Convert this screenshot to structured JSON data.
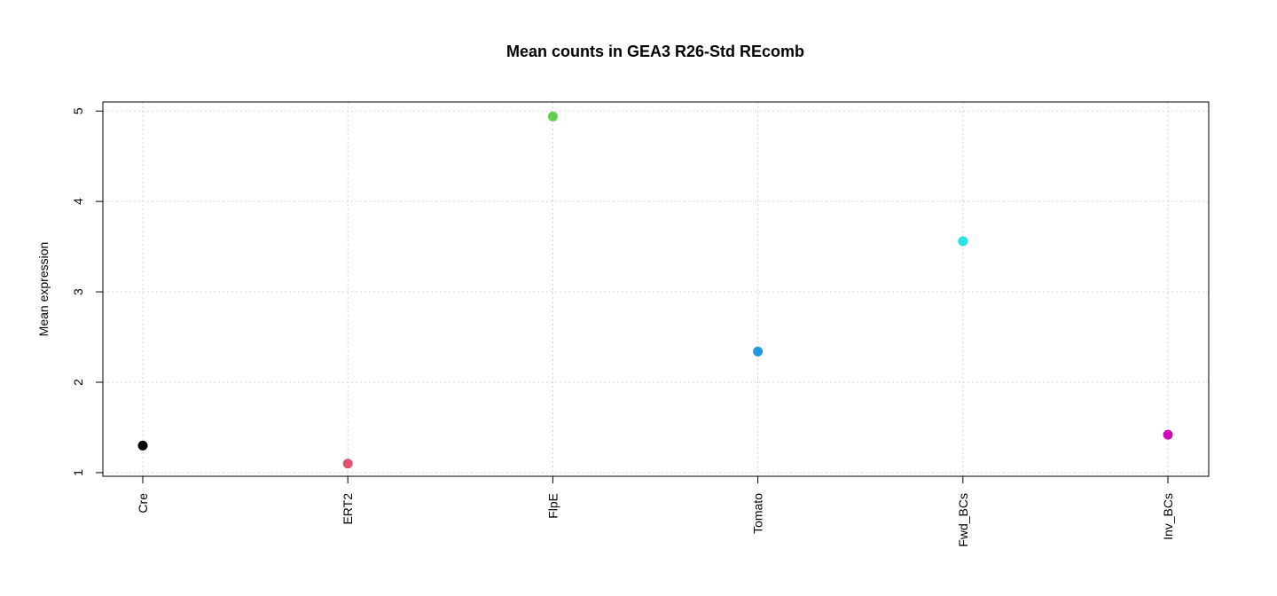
{
  "chart_data": {
    "type": "scatter",
    "title": "Mean counts in GEA3 R26-Std REcomb",
    "xlabel": "",
    "ylabel": "Mean expression",
    "categories": [
      "Cre",
      "ERT2",
      "FlpE",
      "Tomato",
      "Fwd_BCs",
      "Inv_BCs"
    ],
    "values": [
      1.3,
      1.1,
      4.94,
      2.34,
      3.56,
      1.42
    ],
    "point_colors": [
      "#000000",
      "#DF536B",
      "#61D04F",
      "#2297E6",
      "#28E2E5",
      "#CD0BBC"
    ],
    "ylim": [
      0.96,
      5.1
    ],
    "yticks": [
      1,
      2,
      3,
      4,
      5
    ],
    "grid": true
  }
}
